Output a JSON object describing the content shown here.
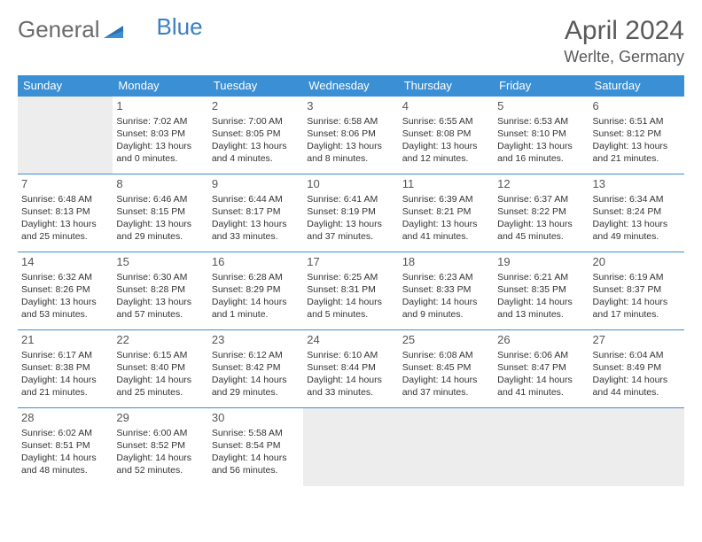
{
  "logo": {
    "text1": "General",
    "text2": "Blue"
  },
  "title": "April 2024",
  "subtitle": "Werlte, Germany",
  "colors": {
    "header_bg": "#3b8fd4",
    "header_text": "#ffffff",
    "border": "#3b8fd4",
    "empty_bg": "#ededed",
    "title_color": "#5a5a5a",
    "logo_gray": "#6b6b6b",
    "logo_blue": "#3b7fc4",
    "text": "#333333"
  },
  "day_headers": [
    "Sunday",
    "Monday",
    "Tuesday",
    "Wednesday",
    "Thursday",
    "Friday",
    "Saturday"
  ],
  "weeks": [
    [
      {
        "empty": true
      },
      {
        "n": "1",
        "sunrise": "7:02 AM",
        "sunset": "8:03 PM",
        "daylight": "13 hours and 0 minutes."
      },
      {
        "n": "2",
        "sunrise": "7:00 AM",
        "sunset": "8:05 PM",
        "daylight": "13 hours and 4 minutes."
      },
      {
        "n": "3",
        "sunrise": "6:58 AM",
        "sunset": "8:06 PM",
        "daylight": "13 hours and 8 minutes."
      },
      {
        "n": "4",
        "sunrise": "6:55 AM",
        "sunset": "8:08 PM",
        "daylight": "13 hours and 12 minutes."
      },
      {
        "n": "5",
        "sunrise": "6:53 AM",
        "sunset": "8:10 PM",
        "daylight": "13 hours and 16 minutes."
      },
      {
        "n": "6",
        "sunrise": "6:51 AM",
        "sunset": "8:12 PM",
        "daylight": "13 hours and 21 minutes."
      }
    ],
    [
      {
        "n": "7",
        "sunrise": "6:48 AM",
        "sunset": "8:13 PM",
        "daylight": "13 hours and 25 minutes."
      },
      {
        "n": "8",
        "sunrise": "6:46 AM",
        "sunset": "8:15 PM",
        "daylight": "13 hours and 29 minutes."
      },
      {
        "n": "9",
        "sunrise": "6:44 AM",
        "sunset": "8:17 PM",
        "daylight": "13 hours and 33 minutes."
      },
      {
        "n": "10",
        "sunrise": "6:41 AM",
        "sunset": "8:19 PM",
        "daylight": "13 hours and 37 minutes."
      },
      {
        "n": "11",
        "sunrise": "6:39 AM",
        "sunset": "8:21 PM",
        "daylight": "13 hours and 41 minutes."
      },
      {
        "n": "12",
        "sunrise": "6:37 AM",
        "sunset": "8:22 PM",
        "daylight": "13 hours and 45 minutes."
      },
      {
        "n": "13",
        "sunrise": "6:34 AM",
        "sunset": "8:24 PM",
        "daylight": "13 hours and 49 minutes."
      }
    ],
    [
      {
        "n": "14",
        "sunrise": "6:32 AM",
        "sunset": "8:26 PM",
        "daylight": "13 hours and 53 minutes."
      },
      {
        "n": "15",
        "sunrise": "6:30 AM",
        "sunset": "8:28 PM",
        "daylight": "13 hours and 57 minutes."
      },
      {
        "n": "16",
        "sunrise": "6:28 AM",
        "sunset": "8:29 PM",
        "daylight": "14 hours and 1 minute."
      },
      {
        "n": "17",
        "sunrise": "6:25 AM",
        "sunset": "8:31 PM",
        "daylight": "14 hours and 5 minutes."
      },
      {
        "n": "18",
        "sunrise": "6:23 AM",
        "sunset": "8:33 PM",
        "daylight": "14 hours and 9 minutes."
      },
      {
        "n": "19",
        "sunrise": "6:21 AM",
        "sunset": "8:35 PM",
        "daylight": "14 hours and 13 minutes."
      },
      {
        "n": "20",
        "sunrise": "6:19 AM",
        "sunset": "8:37 PM",
        "daylight": "14 hours and 17 minutes."
      }
    ],
    [
      {
        "n": "21",
        "sunrise": "6:17 AM",
        "sunset": "8:38 PM",
        "daylight": "14 hours and 21 minutes."
      },
      {
        "n": "22",
        "sunrise": "6:15 AM",
        "sunset": "8:40 PM",
        "daylight": "14 hours and 25 minutes."
      },
      {
        "n": "23",
        "sunrise": "6:12 AM",
        "sunset": "8:42 PM",
        "daylight": "14 hours and 29 minutes."
      },
      {
        "n": "24",
        "sunrise": "6:10 AM",
        "sunset": "8:44 PM",
        "daylight": "14 hours and 33 minutes."
      },
      {
        "n": "25",
        "sunrise": "6:08 AM",
        "sunset": "8:45 PM",
        "daylight": "14 hours and 37 minutes."
      },
      {
        "n": "26",
        "sunrise": "6:06 AM",
        "sunset": "8:47 PM",
        "daylight": "14 hours and 41 minutes."
      },
      {
        "n": "27",
        "sunrise": "6:04 AM",
        "sunset": "8:49 PM",
        "daylight": "14 hours and 44 minutes."
      }
    ],
    [
      {
        "n": "28",
        "sunrise": "6:02 AM",
        "sunset": "8:51 PM",
        "daylight": "14 hours and 48 minutes."
      },
      {
        "n": "29",
        "sunrise": "6:00 AM",
        "sunset": "8:52 PM",
        "daylight": "14 hours and 52 minutes."
      },
      {
        "n": "30",
        "sunrise": "5:58 AM",
        "sunset": "8:54 PM",
        "daylight": "14 hours and 56 minutes."
      },
      {
        "empty": true
      },
      {
        "empty": true
      },
      {
        "empty": true
      },
      {
        "empty": true
      }
    ]
  ],
  "labels": {
    "sunrise": "Sunrise:",
    "sunset": "Sunset:",
    "daylight": "Daylight:"
  }
}
